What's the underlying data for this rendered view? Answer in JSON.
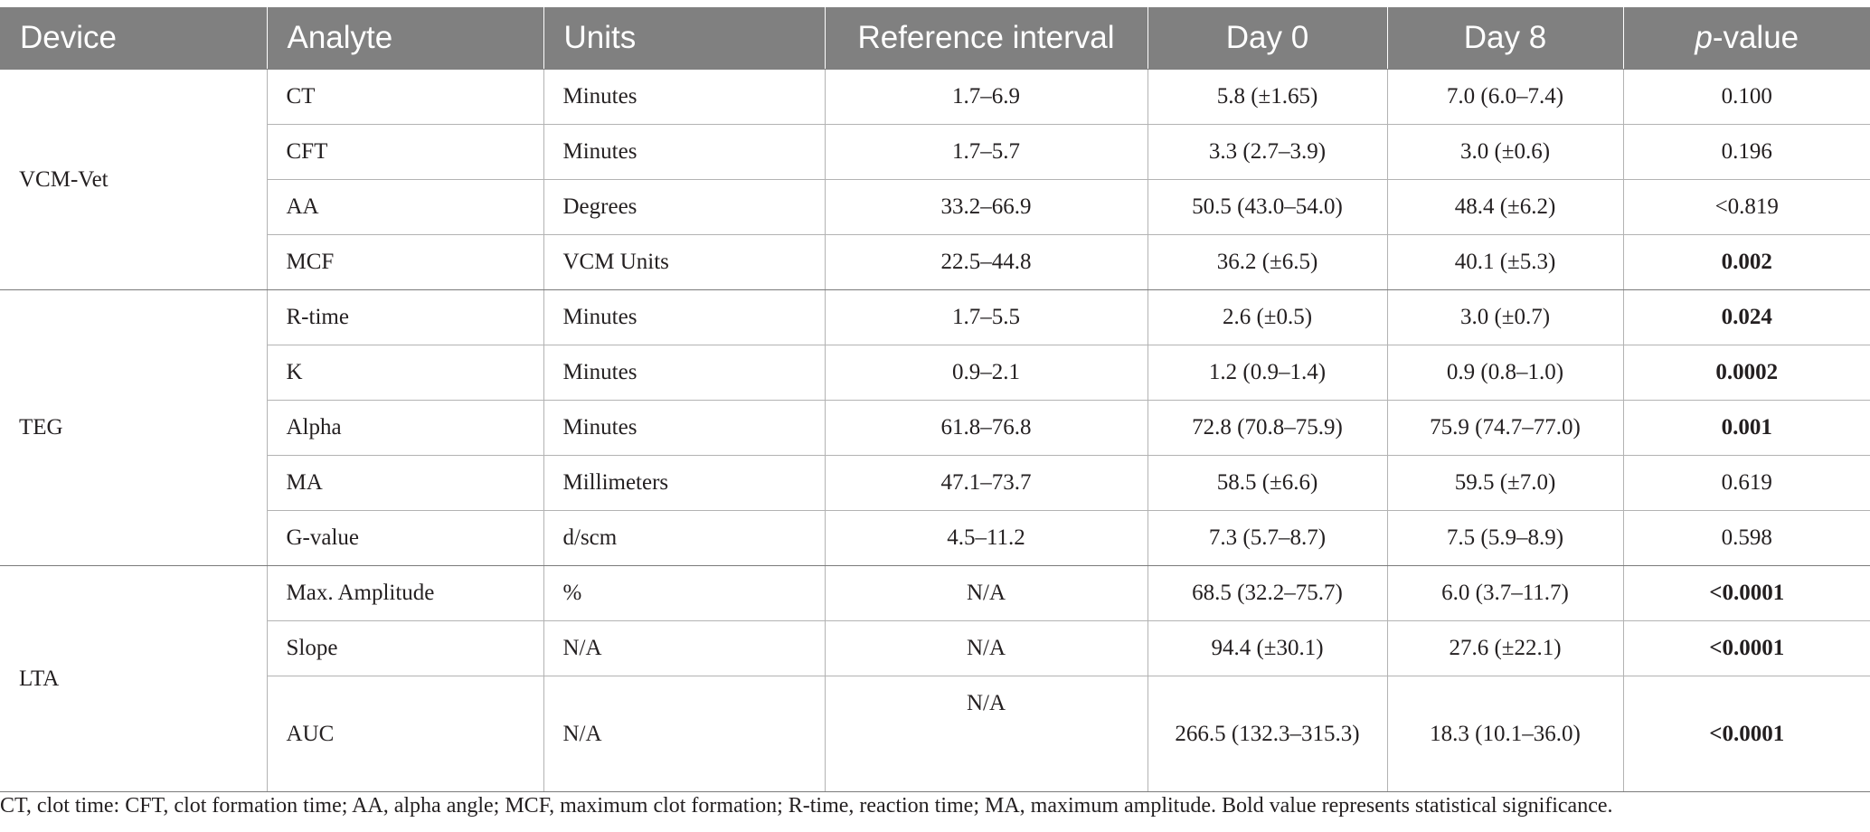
{
  "table": {
    "headers": [
      "Device",
      "Analyte",
      "Units",
      "Reference interval",
      "Day 0",
      "Day 8",
      "p-value"
    ],
    "p_value_header": {
      "italic": "p",
      "rest": "-value"
    },
    "groups": [
      {
        "device": "VCM-Vet",
        "rows": [
          {
            "analyte": "CT",
            "units": "Minutes",
            "ref": "1.7–6.9",
            "day0": "5.8 (±1.65)",
            "day8": "7.0 (6.0–7.4)",
            "p": "0.100",
            "bold": false
          },
          {
            "analyte": "CFT",
            "units": "Minutes",
            "ref": "1.7–5.7",
            "day0": "3.3 (2.7–3.9)",
            "day8": "3.0 (±0.6)",
            "p": "0.196",
            "bold": false
          },
          {
            "analyte": "AA",
            "units": "Degrees",
            "ref": "33.2–66.9",
            "day0": "50.5 (43.0–54.0)",
            "day8": "48.4 (±6.2)",
            "p": "<0.819",
            "bold": false
          },
          {
            "analyte": "MCF",
            "units": "VCM Units",
            "ref": "22.5–44.8",
            "day0": "36.2 (±6.5)",
            "day8": "40.1 (±5.3)",
            "p": "0.002",
            "bold": true
          }
        ]
      },
      {
        "device": "TEG",
        "rows": [
          {
            "analyte": "R-time",
            "units": "Minutes",
            "ref": "1.7–5.5",
            "day0": "2.6 (±0.5)",
            "day8": "3.0 (±0.7)",
            "p": "0.024",
            "bold": true
          },
          {
            "analyte": "K",
            "units": "Minutes",
            "ref": "0.9–2.1",
            "day0": "1.2 (0.9–1.4)",
            "day8": "0.9 (0.8–1.0)",
            "p": "0.0002",
            "bold": true
          },
          {
            "analyte": "Alpha",
            "units": "Minutes",
            "ref": "61.8–76.8",
            "day0": "72.8 (70.8–75.9)",
            "day8": "75.9 (74.7–77.0)",
            "p": "0.001",
            "bold": true
          },
          {
            "analyte": "MA",
            "units": "Millimeters",
            "ref": "47.1–73.7",
            "day0": "58.5 (±6.6)",
            "day8": "59.5 (±7.0)",
            "p": "0.619",
            "bold": false
          },
          {
            "analyte": "G-value",
            "units": "d/scm",
            "ref": "4.5–11.2",
            "day0": "7.3 (5.7–8.7)",
            "day8": "7.5 (5.9–8.9)",
            "p": "0.598",
            "bold": false
          }
        ]
      },
      {
        "device": "LTA",
        "rows": [
          {
            "analyte": "Max. Amplitude",
            "units": "%",
            "ref": "N/A",
            "day0": "68.5 (32.2–75.7)",
            "day8": "6.0 (3.7–11.7)",
            "p": "<0.0001",
            "bold": true
          },
          {
            "analyte": "Slope",
            "units": "N/A",
            "ref": "N/A",
            "day0": "94.4 (±30.1)",
            "day8": "27.6 (±22.1)",
            "p": "<0.0001",
            "bold": true
          },
          {
            "analyte": "AUC",
            "units": "N/A",
            "ref": "N/A",
            "day0": "266.5 (132.3–315.3)",
            "day8": "18.3 (10.1–36.0)",
            "p": "<0.0001",
            "bold": true
          }
        ]
      }
    ]
  },
  "footnote": "CT, clot time: CFT, clot formation time; AA, alpha angle; MCF, maximum clot formation; R-time, reaction time; MA, maximum amplitude. Bold value represents statistical significance."
}
